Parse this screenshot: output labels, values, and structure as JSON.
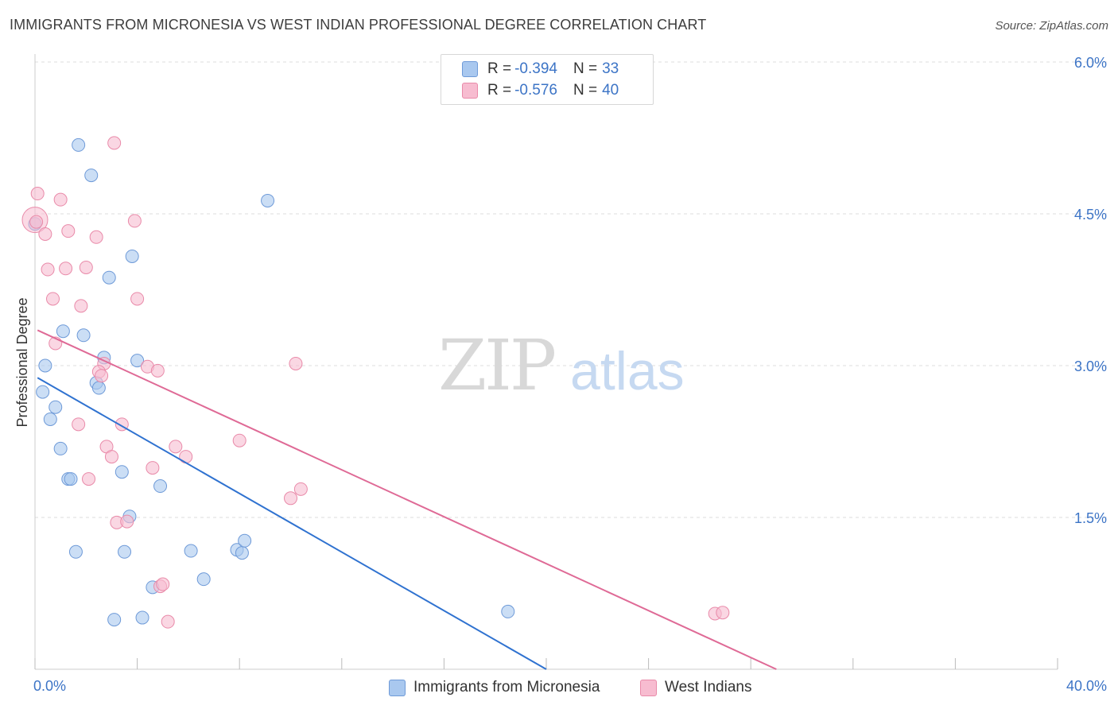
{
  "header": {
    "title": "IMMIGRANTS FROM MICRONESIA VS WEST INDIAN PROFESSIONAL DEGREE CORRELATION CHART",
    "source": "Source: ZipAtlas.com"
  },
  "watermark": {
    "zip": "ZIP",
    "atlas": "atlas"
  },
  "colors": {
    "blue_fill": "#a9c8ef",
    "blue_stroke": "#6e9ad8",
    "blue_line": "#2f72d0",
    "pink_fill": "#f7bcd0",
    "pink_stroke": "#e98aa9",
    "pink_line": "#df6a96",
    "tick_label": "#3c74c6",
    "grid": "#dddddd"
  },
  "legend": {
    "series": [
      {
        "r_label": "R =",
        "r_value": "-0.394",
        "n_label": "N =",
        "n_value": "33"
      },
      {
        "r_label": "R =",
        "r_value": "-0.576",
        "n_label": "N =",
        "n_value": "40"
      }
    ]
  },
  "chart_data": {
    "type": "scatter",
    "title": "IMMIGRANTS FROM MICRONESIA VS WEST INDIAN PROFESSIONAL DEGREE CORRELATION CHART",
    "xlabel": "",
    "ylabel": "Professional Degree",
    "xlim": [
      0,
      40
    ],
    "ylim": [
      0,
      6.0
    ],
    "x_tick_labels": [
      "0.0%",
      "40.0%"
    ],
    "y_ticks": [
      1.5,
      3.0,
      4.5,
      6.0
    ],
    "y_tick_labels": [
      "1.5%",
      "3.0%",
      "4.5%",
      "6.0%"
    ],
    "legend_position": "top-center",
    "series": [
      {
        "name": "Immigrants from Micronesia",
        "points": [
          [
            1.7,
            5.18
          ],
          [
            2.2,
            4.88
          ],
          [
            9.1,
            4.63
          ],
          [
            0.0,
            4.4
          ],
          [
            3.8,
            4.08
          ],
          [
            2.9,
            3.87
          ],
          [
            1.1,
            3.34
          ],
          [
            1.9,
            3.3
          ],
          [
            0.4,
            3.0
          ],
          [
            2.7,
            3.08
          ],
          [
            4.0,
            3.05
          ],
          [
            2.4,
            2.83
          ],
          [
            2.5,
            2.78
          ],
          [
            0.3,
            2.74
          ],
          [
            0.8,
            2.59
          ],
          [
            0.6,
            2.47
          ],
          [
            1.0,
            2.18
          ],
          [
            3.4,
            1.95
          ],
          [
            1.3,
            1.88
          ],
          [
            1.4,
            1.88
          ],
          [
            4.9,
            1.81
          ],
          [
            3.7,
            1.51
          ],
          [
            1.6,
            1.16
          ],
          [
            3.5,
            1.16
          ],
          [
            6.1,
            1.17
          ],
          [
            7.9,
            1.18
          ],
          [
            8.1,
            1.15
          ],
          [
            8.2,
            1.27
          ],
          [
            6.6,
            0.89
          ],
          [
            4.6,
            0.81
          ],
          [
            18.5,
            0.57
          ],
          [
            3.1,
            0.49
          ],
          [
            4.2,
            0.51
          ]
        ],
        "trend": {
          "x0": 0.1,
          "y0": 2.88,
          "x1": 20.0,
          "y1": 0.0
        }
      },
      {
        "name": "West Indians",
        "points": [
          [
            0.1,
            4.7
          ],
          [
            3.1,
            5.2
          ],
          [
            0.0,
            4.44
          ],
          [
            0.4,
            4.3
          ],
          [
            1.0,
            4.64
          ],
          [
            3.9,
            4.43
          ],
          [
            1.3,
            4.33
          ],
          [
            2.4,
            4.27
          ],
          [
            0.5,
            3.95
          ],
          [
            2.0,
            3.97
          ],
          [
            1.2,
            3.96
          ],
          [
            0.7,
            3.66
          ],
          [
            1.8,
            3.59
          ],
          [
            4.0,
            3.66
          ],
          [
            0.8,
            3.22
          ],
          [
            2.7,
            3.02
          ],
          [
            4.4,
            2.99
          ],
          [
            4.8,
            2.95
          ],
          [
            2.5,
            2.94
          ],
          [
            2.6,
            2.9
          ],
          [
            10.2,
            3.02
          ],
          [
            1.7,
            2.42
          ],
          [
            3.4,
            2.42
          ],
          [
            2.8,
            2.2
          ],
          [
            3.0,
            2.1
          ],
          [
            5.5,
            2.2
          ],
          [
            5.9,
            2.1
          ],
          [
            8.0,
            2.26
          ],
          [
            4.6,
            1.99
          ],
          [
            2.1,
            1.88
          ],
          [
            10.4,
            1.78
          ],
          [
            10.0,
            1.69
          ],
          [
            3.2,
            1.45
          ],
          [
            3.6,
            1.46
          ],
          [
            4.9,
            0.82
          ],
          [
            5.0,
            0.84
          ],
          [
            5.2,
            0.47
          ],
          [
            26.6,
            0.55
          ],
          [
            26.9,
            0.56
          ],
          [
            0.05,
            4.42
          ]
        ],
        "trend": {
          "x0": 0.1,
          "y0": 3.35,
          "x1": 29.0,
          "y1": 0.0
        }
      }
    ]
  }
}
